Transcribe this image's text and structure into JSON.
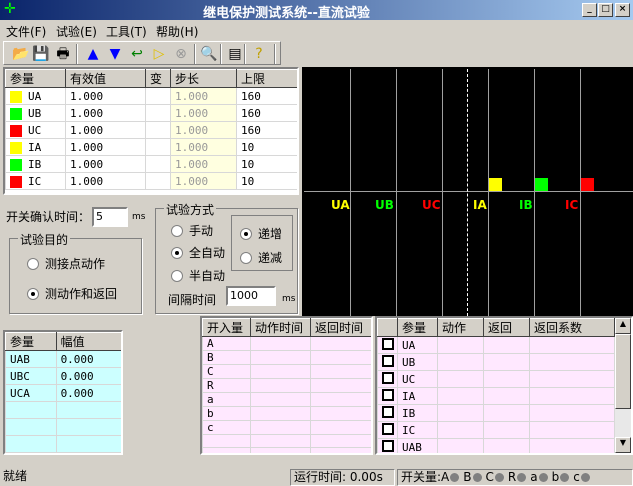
{
  "window": {
    "title": "继电保护测试系统--直流试验",
    "min": "_",
    "max": "□",
    "close": "×"
  },
  "menu": [
    "文件(F)",
    "试验(E)",
    "工具(T)",
    "帮助(H)"
  ],
  "toolbar": [
    {
      "icon": "open-folder-icon",
      "g": "📂"
    },
    {
      "icon": "save-icon",
      "g": "💾"
    },
    {
      "icon": "print-icon",
      "g": "🖶"
    },
    {
      "icon": "increase-icon",
      "g": "▲"
    },
    {
      "icon": "decrease-icon",
      "g": "▼"
    },
    {
      "icon": "reset-icon",
      "g": "↩"
    },
    {
      "icon": "start-icon",
      "g": "▷"
    },
    {
      "icon": "stop-icon",
      "g": "⊗"
    },
    {
      "icon": "zoom-icon",
      "g": "🔍"
    },
    {
      "icon": "calculator-icon",
      "g": "▤"
    },
    {
      "icon": "help-icon",
      "g": "?"
    }
  ],
  "params": {
    "headers": [
      "参量",
      "有效值",
      "变",
      "步长",
      "上限"
    ],
    "rows": [
      {
        "name": "UA",
        "color": "#ffff00",
        "value": "1.000",
        "step": "1.000",
        "limit": "160"
      },
      {
        "name": "UB",
        "color": "#00ff00",
        "value": "1.000",
        "step": "1.000",
        "limit": "160"
      },
      {
        "name": "UC",
        "color": "#ff0000",
        "value": "1.000",
        "step": "1.000",
        "limit": "160"
      },
      {
        "name": "IA",
        "color": "#ffff00",
        "value": "1.000",
        "step": "1.000",
        "limit": "10"
      },
      {
        "name": "IB",
        "color": "#00ff00",
        "value": "1.000",
        "step": "1.000",
        "limit": "10"
      },
      {
        "name": "IC",
        "color": "#ff0000",
        "value": "1.000",
        "step": "1.000",
        "limit": "10"
      }
    ]
  },
  "chart": {
    "labels": [
      {
        "t": "UA",
        "c": "#ffff00"
      },
      {
        "t": "UB",
        "c": "#00ff00"
      },
      {
        "t": "UC",
        "c": "#ff0000"
      },
      {
        "t": "IA",
        "c": "#ffff00"
      },
      {
        "t": "IB",
        "c": "#00ff00"
      },
      {
        "t": "IC",
        "c": "#ff0000"
      }
    ]
  },
  "controls": {
    "confirm_label": "开关确认时间：",
    "confirm_value": "5",
    "ms": "ms",
    "purpose_title": "试验目的",
    "purpose_opts": [
      "测接点动作",
      "测动作和返回"
    ],
    "purpose_selected": 1,
    "mode_title": "试验方式",
    "mode_opts": [
      "手动",
      "全自动",
      "半自动"
    ],
    "mode_selected": 1,
    "dir_opts": [
      "递增",
      "递减"
    ],
    "dir_selected": 0,
    "interval_label": "间隔时间",
    "interval_value": "1000"
  },
  "line_table": {
    "headers": [
      "参量",
      "幅值"
    ],
    "rows": [
      [
        "UAB",
        "0.000"
      ],
      [
        "UBC",
        "0.000"
      ],
      [
        "UCA",
        "0.000"
      ]
    ]
  },
  "switch_table": {
    "headers": [
      "开入量",
      "动作时间",
      "返回时间"
    ],
    "rows": [
      "A",
      "B",
      "C",
      "R",
      "a",
      "b",
      "c"
    ]
  },
  "result_table": {
    "headers": [
      "",
      "参量",
      "动作",
      "返回",
      "返回系数"
    ],
    "rows": [
      "UA",
      "UB",
      "UC",
      "IA",
      "IB",
      "IC",
      "UAB"
    ]
  },
  "status": {
    "ready": "就绪",
    "runtime": "运行时间: 0.00s",
    "switch_label": "开关量:",
    "switches": [
      "A",
      "B",
      "C",
      "R",
      "a",
      "b",
      "c"
    ]
  }
}
